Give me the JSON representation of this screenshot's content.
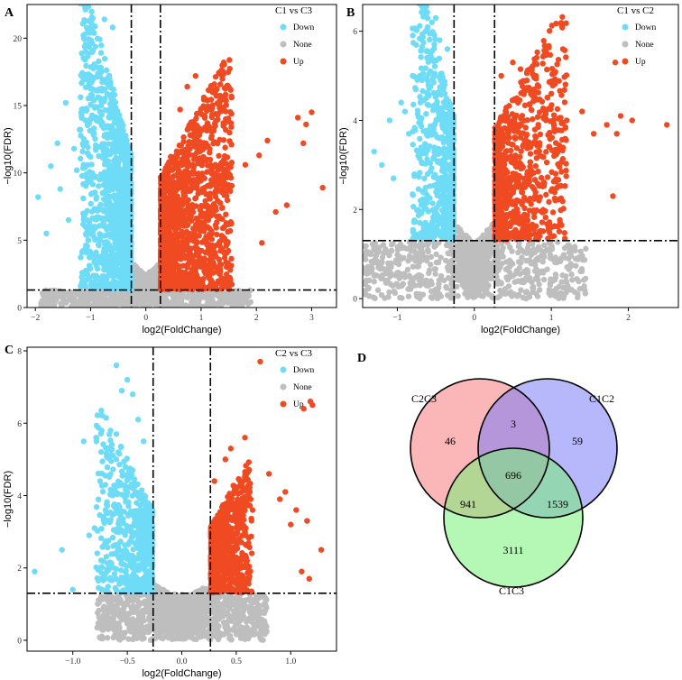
{
  "colors": {
    "down": "#6EDCF7",
    "none": "#BEBEBE",
    "up": "#F04A22",
    "venn_c2c3": "#F77B7B",
    "venn_c1c2": "#7B7BF7",
    "venn_c1c3": "#78F078"
  },
  "chart_data": [
    {
      "type": "scatter",
      "panel_label": "A",
      "title": "C1 vs C3",
      "xlabel": "log2(FoldChange)",
      "ylabel": "−log10(FDR)",
      "xlim": [
        -2.15,
        3.45
      ],
      "ylim": [
        0,
        22.5
      ],
      "xticks": [
        -2,
        -1,
        0,
        1,
        2,
        3
      ],
      "yticks": [
        0,
        5,
        10,
        15,
        20
      ],
      "xtick_labels": [
        "−2",
        "−1",
        "0",
        "1",
        "2",
        "3"
      ],
      "ytick_labels": [
        "0",
        "5",
        "10",
        "15",
        "20"
      ],
      "fc_threshold": 0.263,
      "fdr_threshold": 1.301,
      "legend": [
        "Down",
        "None",
        "Up"
      ],
      "legend_position": "top-right",
      "down_points": [
        [
          -1.95,
          8.2
        ],
        [
          -1.8,
          5.5
        ],
        [
          -1.72,
          10.5
        ],
        [
          -1.6,
          12.2
        ],
        [
          -1.55,
          8.8
        ],
        [
          -1.45,
          15.2
        ],
        [
          -1.4,
          6.5
        ],
        [
          -1.3,
          11.8
        ],
        [
          -1.2,
          13.2
        ],
        [
          -1.1,
          18.4
        ],
        [
          -1.02,
          16.6
        ],
        [
          -0.85,
          16.2
        ],
        [
          -0.75,
          21.4
        ],
        [
          -0.6,
          20.8
        ],
        [
          -0.5,
          14.1
        ],
        [
          -0.4,
          9.7
        ],
        [
          -0.35,
          5.2
        ],
        [
          -0.6,
          8.8
        ],
        [
          -0.9,
          4.1
        ],
        [
          -1.25,
          10.2
        ]
      ],
      "up_points": [
        [
          0.3,
          6.3
        ],
        [
          0.45,
          11.2
        ],
        [
          0.62,
          14.7
        ],
        [
          0.75,
          16.4
        ],
        [
          0.9,
          17.2
        ],
        [
          1.05,
          15.6
        ],
        [
          1.3,
          14.3
        ],
        [
          1.55,
          12.1
        ],
        [
          1.8,
          10.6
        ],
        [
          2.05,
          11.3
        ],
        [
          2.2,
          12.4
        ],
        [
          2.35,
          7.1
        ],
        [
          2.55,
          7.6
        ],
        [
          2.75,
          14.1
        ],
        [
          2.85,
          12.2
        ],
        [
          2.9,
          13.6
        ],
        [
          3.0,
          14.5
        ],
        [
          3.2,
          8.9
        ],
        [
          2.1,
          4.8
        ],
        [
          1.2,
          5.5
        ]
      ],
      "n_down": 1300,
      "n_up": 1550,
      "n_none": 1200,
      "down_max": 15.5,
      "up_max": 12.0,
      "base_max": 4.3
    },
    {
      "type": "scatter",
      "panel_label": "B",
      "title": "C1 vs C2",
      "xlabel": "log2(FoldChange)",
      "ylabel": "−log10(FDR)",
      "xlim": [
        -1.45,
        2.65
      ],
      "ylim": [
        -0.2,
        6.6
      ],
      "xticks": [
        -1,
        0,
        1,
        2
      ],
      "yticks": [
        0,
        2,
        4,
        6
      ],
      "xtick_labels": [
        "−1",
        "0",
        "1",
        "2"
      ],
      "ytick_labels": [
        "0",
        "2",
        "4",
        "6"
      ],
      "fc_threshold": 0.263,
      "fdr_threshold": 1.301,
      "legend": [
        "Down",
        "None",
        "Up"
      ],
      "legend_position": "top-right",
      "down_points": [
        [
          -1.3,
          3.3
        ],
        [
          -1.2,
          3.0
        ],
        [
          -1.1,
          4.0
        ],
        [
          -1.05,
          2.7
        ],
        [
          -0.9,
          4.2
        ],
        [
          -0.85,
          3.7
        ],
        [
          -0.8,
          5.0
        ],
        [
          -0.7,
          4.4
        ],
        [
          -0.6,
          5.4
        ],
        [
          -0.55,
          6.2
        ],
        [
          -0.5,
          6.3
        ],
        [
          -0.45,
          5.8
        ],
        [
          -0.4,
          4.7
        ],
        [
          -0.35,
          5.6
        ],
        [
          -0.7,
          2.2
        ],
        [
          -0.95,
          4.4
        ]
      ],
      "up_points": [
        [
          0.35,
          5.0
        ],
        [
          0.5,
          5.3
        ],
        [
          0.6,
          5.15
        ],
        [
          0.8,
          5.0
        ],
        [
          1.0,
          4.6
        ],
        [
          1.15,
          5.6
        ],
        [
          1.2,
          4.0
        ],
        [
          1.4,
          4.2
        ],
        [
          1.55,
          3.7
        ],
        [
          1.72,
          3.9
        ],
        [
          1.8,
          2.3
        ],
        [
          1.83,
          5.3
        ],
        [
          1.85,
          3.7
        ],
        [
          1.9,
          4.1
        ],
        [
          2.05,
          4.0
        ],
        [
          2.5,
          3.9
        ],
        [
          1.0,
          1.6
        ],
        [
          0.7,
          2.2
        ]
      ],
      "n_down": 700,
      "n_up": 900,
      "n_none": 1300,
      "down_max": 4.3,
      "up_max": 3.6,
      "base_max": 2.2
    },
    {
      "type": "scatter",
      "panel_label": "C",
      "title": "C2 vs C3",
      "xlabel": "log2(FoldChange)",
      "ylabel": "−log10(FDR)",
      "xlim": [
        -1.42,
        1.42
      ],
      "ylim": [
        -0.3,
        8.1
      ],
      "xticks": [
        -1.0,
        -0.5,
        0.0,
        0.5,
        1.0
      ],
      "yticks": [
        0,
        2,
        4,
        6,
        8
      ],
      "xtick_labels": [
        "−1.0",
        "−0.5",
        "0.0",
        "0.5",
        "1.0"
      ],
      "ytick_labels": [
        "0",
        "2",
        "4",
        "6",
        "8"
      ],
      "fc_threshold": 0.263,
      "fdr_threshold": 1.301,
      "legend": [
        "Down",
        "None",
        "Up"
      ],
      "legend_position": "top-right",
      "down_points": [
        [
          -1.35,
          1.9
        ],
        [
          -1.1,
          2.5
        ],
        [
          -1.0,
          1.4
        ],
        [
          -0.9,
          5.5
        ],
        [
          -0.85,
          2.9
        ],
        [
          -0.8,
          3.1
        ],
        [
          -0.75,
          4.4
        ],
        [
          -0.7,
          3.6
        ],
        [
          -0.7,
          1.7
        ],
        [
          -0.6,
          7.6
        ],
        [
          -0.55,
          6.9
        ],
        [
          -0.5,
          7.2
        ],
        [
          -0.45,
          6.8
        ],
        [
          -0.4,
          6.1
        ],
        [
          -0.35,
          5.5
        ],
        [
          -0.6,
          5.7
        ]
      ],
      "up_points": [
        [
          0.3,
          4.4
        ],
        [
          0.4,
          5.0
        ],
        [
          0.45,
          5.3
        ],
        [
          0.58,
          5.6
        ],
        [
          0.65,
          3.6
        ],
        [
          0.72,
          7.7
        ],
        [
          0.8,
          4.6
        ],
        [
          0.9,
          3.9
        ],
        [
          0.95,
          4.1
        ],
        [
          1.0,
          3.2
        ],
        [
          1.05,
          3.6
        ],
        [
          1.1,
          1.9
        ],
        [
          1.12,
          6.4
        ],
        [
          1.15,
          3.3
        ],
        [
          1.18,
          6.6
        ],
        [
          1.2,
          6.5
        ],
        [
          1.28,
          2.5
        ],
        [
          1.17,
          1.7
        ]
      ],
      "n_down": 650,
      "n_up": 800,
      "n_none": 1700,
      "down_max": 3.5,
      "up_max": 2.6,
      "base_max": 2.0
    },
    {
      "type": "venn",
      "panel_label": "D",
      "sets": [
        "C2C3",
        "C1C2",
        "C1C3"
      ],
      "regions": {
        "C2C3_only": "46",
        "C1C2_only": "59",
        "C1C3_only": "3111",
        "C2C3_C1C2": "3",
        "C2C3_C1C3": "941",
        "C1C2_C1C3": "1539",
        "all": "696"
      }
    }
  ]
}
